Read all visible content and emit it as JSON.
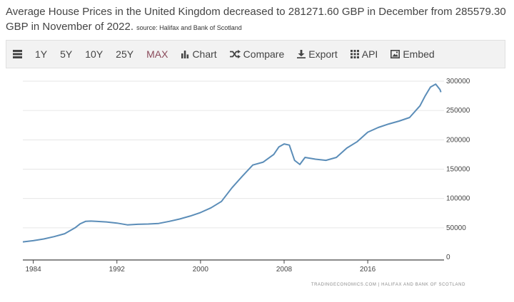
{
  "headline": {
    "text": "Average House Prices in the United Kingdom decreased to 281271.60 GBP in December from 285579.30 GBP in November of 2022.",
    "source": "source: Halifax and Bank of Scotland"
  },
  "toolbar": {
    "ranges": [
      "1Y",
      "5Y",
      "10Y",
      "25Y",
      "MAX"
    ],
    "chart_label": "Chart",
    "compare_label": "Compare",
    "export_label": "Export",
    "api_label": "API",
    "embed_label": "Embed",
    "icons": [
      "table-icon",
      "bar-chart-icon",
      "shuffle-icon",
      "download-icon",
      "grid-icon",
      "image-icon"
    ]
  },
  "watermark": "TRADINGECONOMICS.COM | HALIFAX AND BANK OF SCOTLAND",
  "chart_data": {
    "type": "line",
    "title": "",
    "xlabel": "",
    "ylabel": "",
    "xlim": [
      1983.0,
      2023.3
    ],
    "ylim": [
      0,
      300000
    ],
    "x_ticks": [
      "1984",
      "1992",
      "2000",
      "2008",
      "2016"
    ],
    "x_tick_values": [
      1984,
      1992,
      2000,
      2008,
      2016
    ],
    "y_ticks": [
      "0",
      "50000",
      "100000",
      "150000",
      "200000",
      "250000",
      "300000"
    ],
    "y_tick_values": [
      0,
      50000,
      100000,
      150000,
      200000,
      250000,
      300000
    ],
    "grid": "horizontal",
    "color": "#5b8db8",
    "series": [
      {
        "x": [
          1983.0,
          1984.0,
          1985.0,
          1986.0,
          1987.0,
          1988.0,
          1988.5,
          1989.0,
          1989.5,
          1990.0,
          1991.0,
          1992.0,
          1993.0,
          1994.0,
          1995.0,
          1996.0,
          1997.0,
          1998.0,
          1999.0,
          2000.0,
          2001.0,
          2002.0,
          2003.0,
          2004.0,
          2005.0,
          2006.0,
          2007.0,
          2007.5,
          2008.0,
          2008.5,
          2009.0,
          2009.5,
          2010.0,
          2011.0,
          2012.0,
          2013.0,
          2014.0,
          2015.0,
          2016.0,
          2017.0,
          2018.0,
          2019.0,
          2020.0,
          2021.0,
          2021.5,
          2022.0,
          2022.5,
          2022.92,
          2023.0
        ],
        "y": [
          26000,
          28000,
          31000,
          35000,
          40000,
          50000,
          57000,
          61000,
          61500,
          61000,
          60000,
          58000,
          55000,
          56000,
          56500,
          57500,
          61000,
          65000,
          70000,
          76000,
          84000,
          95000,
          118000,
          138000,
          157000,
          162000,
          175000,
          188000,
          193000,
          191000,
          165000,
          158000,
          170000,
          167000,
          165000,
          170000,
          186000,
          197000,
          213000,
          221000,
          227000,
          232000,
          238000,
          258000,
          275000,
          290000,
          295000,
          285579.3,
          281271.6
        ]
      }
    ]
  }
}
